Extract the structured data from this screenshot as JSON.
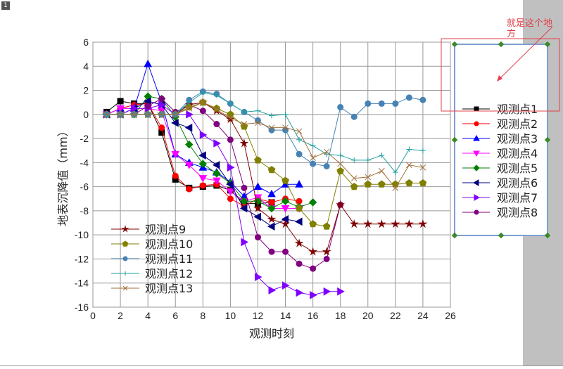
{
  "page_label": "1",
  "annotation": {
    "text_line1": "就是这个地",
    "text_line2": "方",
    "color": "#e0404a"
  },
  "chart_data": {
    "type": "line",
    "title": "",
    "xlabel": "观测时刻",
    "ylabel": "地表沉降值（mm）",
    "xlim": [
      0,
      26
    ],
    "ylim": [
      -16,
      6
    ],
    "xticks": [
      0,
      2,
      4,
      6,
      8,
      10,
      12,
      14,
      16,
      18,
      20,
      22,
      24,
      26
    ],
    "yticks": [
      6,
      4,
      2,
      0,
      -2,
      -4,
      -6,
      -8,
      -10,
      -12,
      -14,
      -16
    ],
    "grid": true,
    "legend_placement": [
      "right-outside",
      "bottom-left"
    ],
    "series": [
      {
        "name": "观测点1",
        "color": "#000000",
        "marker": "square",
        "x": [
          1,
          2,
          3,
          4,
          5,
          6,
          7,
          8,
          9,
          10,
          11,
          12,
          13
        ],
        "y": [
          0.2,
          1.1,
          0.9,
          0.9,
          -1.5,
          -5.4,
          -6.1,
          -6.0,
          -5.9,
          -6.3,
          -7.4,
          -7.4,
          -7.3
        ]
      },
      {
        "name": "观测点2",
        "color": "#ff0000",
        "marker": "circle",
        "x": [
          1,
          2,
          3,
          4,
          5,
          6,
          7,
          8,
          9,
          10,
          11,
          12,
          13,
          14,
          15
        ],
        "y": [
          0,
          0.5,
          0.8,
          0.9,
          -1.1,
          -5.1,
          -6.2,
          -5.9,
          -5.8,
          -7.0,
          -7.6,
          -7.0,
          -7.3,
          -7.0,
          -7.2
        ]
      },
      {
        "name": "观测点3",
        "color": "#0000ff",
        "marker": "triangle-up",
        "x": [
          1,
          2,
          3,
          4,
          5,
          6,
          7,
          8,
          9,
          10,
          11,
          12,
          13,
          14,
          15
        ],
        "y": [
          0,
          0.5,
          0.5,
          4.2,
          1.0,
          -3.3,
          -4.0,
          -4.4,
          -4.8,
          -5.6,
          -6.8,
          -6.0,
          -6.6,
          -5.8,
          -5.8
        ]
      },
      {
        "name": "观测点4",
        "color": "#ff00ff",
        "marker": "triangle-down",
        "x": [
          1,
          2,
          3,
          4,
          5,
          6,
          7,
          8,
          9,
          10,
          11,
          12,
          13,
          14,
          15
        ],
        "y": [
          0,
          0.5,
          0.5,
          0.5,
          0.3,
          -3.3,
          -4.2,
          -5.3,
          -5.5,
          -6.4,
          -7.2,
          -6.9,
          -7.8,
          -7.8,
          -7.8
        ]
      },
      {
        "name": "观测点5",
        "color": "#008000",
        "marker": "diamond",
        "x": [
          1,
          2,
          3,
          4,
          5,
          6,
          7,
          8,
          9,
          10,
          11,
          12,
          13,
          14,
          15,
          16
        ],
        "y": [
          0,
          0,
          0,
          1.5,
          1.3,
          -0.2,
          -2.5,
          -4.1,
          -4.9,
          -5.7,
          -7.2,
          -7.2,
          -7.8,
          -7.2,
          -7.7,
          -7.3
        ]
      },
      {
        "name": "观测点6",
        "color": "#000080",
        "marker": "triangle-left",
        "x": [
          1,
          2,
          3,
          4,
          5,
          6,
          7,
          8,
          9,
          10,
          11,
          12,
          13,
          14,
          15
        ],
        "y": [
          0,
          0,
          0.5,
          1.1,
          0.8,
          -0.7,
          -1.1,
          -3.4,
          -4.2,
          -5.8,
          -7.8,
          -8.5,
          -9.3,
          -8.7,
          -8.9
        ]
      },
      {
        "name": "观测点7",
        "color": "#8000ff",
        "marker": "triangle-right",
        "x": [
          1,
          2,
          3,
          4,
          5,
          6,
          7,
          8,
          9,
          10,
          11,
          12,
          13,
          14,
          15,
          16,
          17,
          18
        ],
        "y": [
          0,
          0,
          0.5,
          0.5,
          0.8,
          0,
          0,
          -1.7,
          -2.4,
          -4.4,
          -10.6,
          -13.5,
          -14.6,
          -14.2,
          -14.8,
          -15.0,
          -14.7,
          -14.7
        ]
      },
      {
        "name": "观测点8",
        "color": "#800080",
        "marker": "circle",
        "x": [
          1,
          2,
          3,
          4,
          5,
          6,
          7,
          8,
          9,
          10,
          11,
          12,
          13,
          14,
          15,
          16,
          17,
          18
        ],
        "y": [
          0,
          0,
          0,
          0.7,
          1.3,
          0.2,
          0.8,
          0.3,
          -0.8,
          -2.1,
          -6.1,
          -10.2,
          -11.4,
          -11.4,
          -12.4,
          -12.8,
          -12.0,
          -7.5
        ]
      },
      {
        "name": "观测点9",
        "color": "#800000",
        "marker": "star",
        "x": [
          1,
          2,
          3,
          4,
          5,
          6,
          7,
          8,
          9,
          10,
          11,
          12,
          13,
          14,
          15,
          16,
          17,
          18,
          19,
          20,
          21,
          22,
          23,
          24
        ],
        "y": [
          0,
          0,
          0,
          0,
          0,
          0,
          0.8,
          1.0,
          0.3,
          -0.4,
          -2.4,
          -7.8,
          -8.7,
          -9.1,
          -10.7,
          -11.4,
          -11.4,
          -7.5,
          -9.1,
          -9.1,
          -9.1,
          -9.1,
          -9.1,
          -9.1
        ]
      },
      {
        "name": "观测点10",
        "color": "#808000",
        "marker": "pentagon",
        "x": [
          1,
          2,
          3,
          4,
          5,
          6,
          7,
          8,
          9,
          10,
          11,
          12,
          13,
          14,
          15,
          16,
          17,
          18,
          19,
          20,
          21,
          22,
          23,
          24
        ],
        "y": [
          0,
          0,
          0,
          0,
          0,
          0,
          0.6,
          1.0,
          0.5,
          0,
          -1.0,
          -3.8,
          -4.6,
          -5.5,
          -7.8,
          -9.1,
          -9.3,
          -4.7,
          -6.0,
          -5.8,
          -5.8,
          -5.8,
          -5.7,
          -5.7
        ]
      },
      {
        "name": "观测点11",
        "color": "#4682b4",
        "marker": "circle",
        "x": [
          1,
          2,
          3,
          4,
          5,
          6,
          7,
          8,
          9,
          10,
          11,
          12,
          13,
          14,
          15,
          16,
          17,
          18,
          19,
          20,
          21,
          22,
          23,
          24
        ],
        "y": [
          0,
          0,
          0,
          0,
          0,
          0,
          1.2,
          1.9,
          1.7,
          0.9,
          0.2,
          -0.5,
          -1.3,
          -1.3,
          -3.3,
          -4.1,
          -4.3,
          0.6,
          -0.2,
          0.9,
          0.9,
          0.9,
          1.4,
          1.2
        ]
      },
      {
        "name": "观测点12",
        "color": "#20a0a0",
        "marker": "plus",
        "x": [
          1,
          2,
          3,
          4,
          5,
          6,
          7,
          8,
          9,
          10,
          11,
          12,
          13,
          14,
          15,
          16,
          17,
          18,
          19,
          20,
          21,
          22,
          23,
          24
        ],
        "y": [
          0,
          0,
          0,
          0,
          0,
          0,
          1.0,
          1.8,
          1.6,
          0.9,
          0.2,
          0.3,
          -0.1,
          0,
          -2.1,
          -2.6,
          -3.3,
          -3.4,
          -3.8,
          -3.8,
          -3.4,
          -4.8,
          -2.9,
          -3.0
        ]
      },
      {
        "name": "观测点13",
        "color": "#a0703a",
        "marker": "x",
        "x": [
          1,
          2,
          3,
          4,
          5,
          6,
          7,
          8,
          9,
          10,
          11,
          12,
          13,
          14,
          15,
          16,
          17,
          18,
          19,
          20,
          21,
          22,
          23,
          24
        ],
        "y": [
          0,
          0,
          0,
          0,
          0,
          0,
          0.5,
          1.0,
          0.4,
          -0.3,
          -0.8,
          -0.7,
          -1.1,
          -1.1,
          -1.4,
          -3.6,
          -3.1,
          -4.1,
          -5.3,
          -5.2,
          -4.7,
          -6.1,
          -4.2,
          -4.4
        ]
      }
    ]
  }
}
